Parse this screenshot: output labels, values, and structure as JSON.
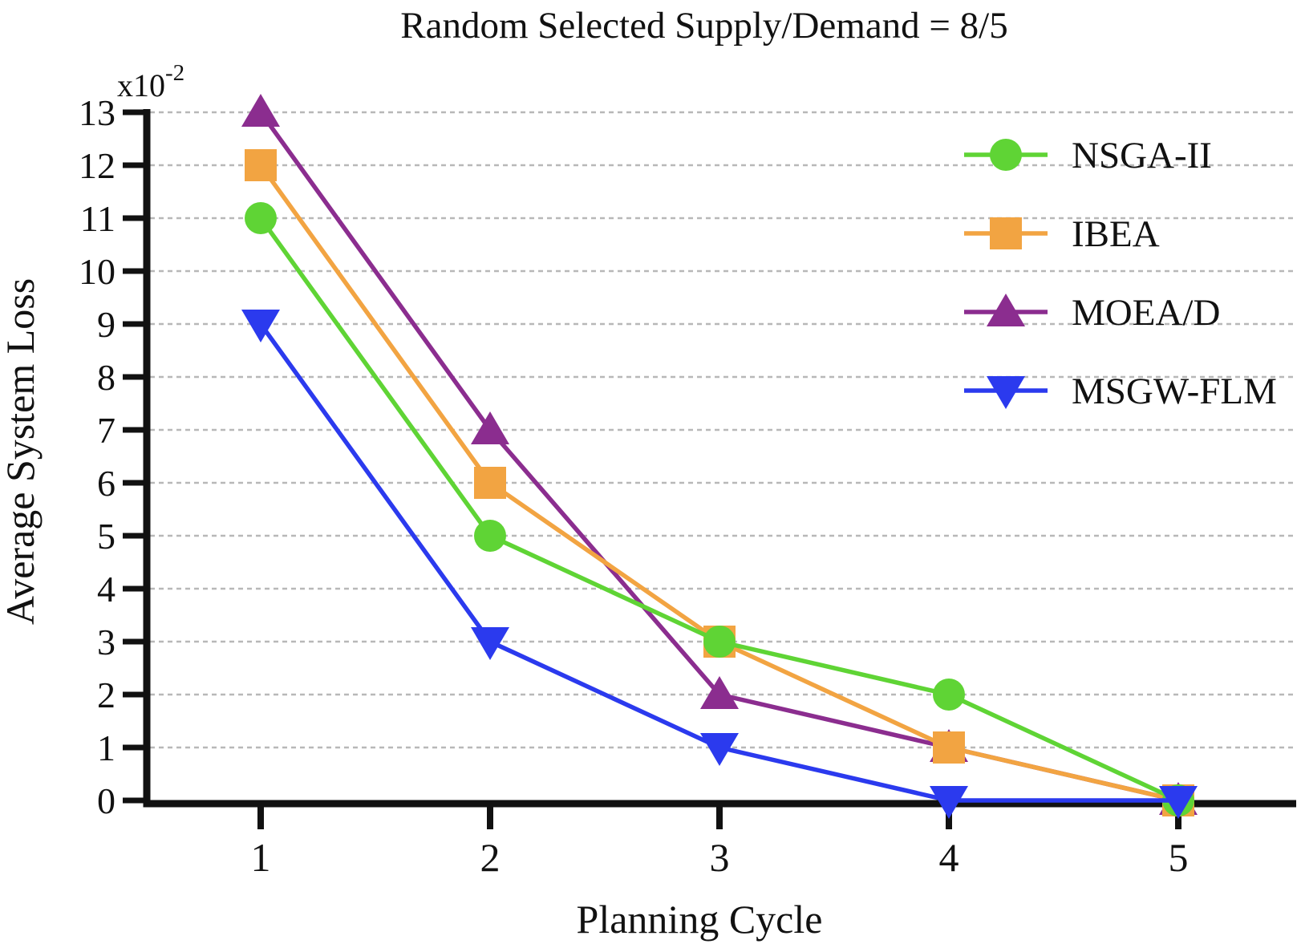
{
  "chart_data": {
    "type": "line",
    "title": "Random Selected Supply/Demand = 8/5",
    "xlabel": "Planning Cycle",
    "ylabel": "Average System Loss",
    "y_multiplier": {
      "base": "x10",
      "exponent": "-2"
    },
    "x": [
      1,
      2,
      3,
      4,
      5
    ],
    "x_ticks": [
      "1",
      "2",
      "3",
      "4",
      "5"
    ],
    "y_ticks": [
      "0",
      "1",
      "2",
      "3",
      "4",
      "5",
      "6",
      "7",
      "8",
      "9",
      "10",
      "11",
      "12",
      "13"
    ],
    "ylim": [
      0,
      13
    ],
    "grid": "horizontal-dashed",
    "legend_position": "top-right-inside",
    "series": [
      {
        "name": "NSGA-II",
        "color": "#5fd435",
        "marker": "circle",
        "values": [
          11,
          5,
          3,
          2,
          0
        ]
      },
      {
        "name": "IBEA",
        "color": "#f2a442",
        "marker": "square",
        "values": [
          12,
          6,
          3,
          1,
          0
        ]
      },
      {
        "name": "MOEA/D",
        "color": "#8b2d8f",
        "marker": "triangle-up",
        "values": [
          13,
          7,
          2,
          1,
          0
        ]
      },
      {
        "name": "MSGW-FLM",
        "color": "#2b3aee",
        "marker": "triangle-down",
        "values": [
          9,
          3,
          1,
          0,
          0
        ]
      }
    ],
    "draw_order": [
      "MOEA/D",
      "IBEA",
      "NSGA-II",
      "MSGW-FLM"
    ],
    "legend_order": [
      "NSGA-II",
      "IBEA",
      "MOEA/D",
      "MSGW-FLM"
    ]
  },
  "colors": {
    "axis": "#111111",
    "grid": "#b8b8b8",
    "background": "#ffffff"
  }
}
